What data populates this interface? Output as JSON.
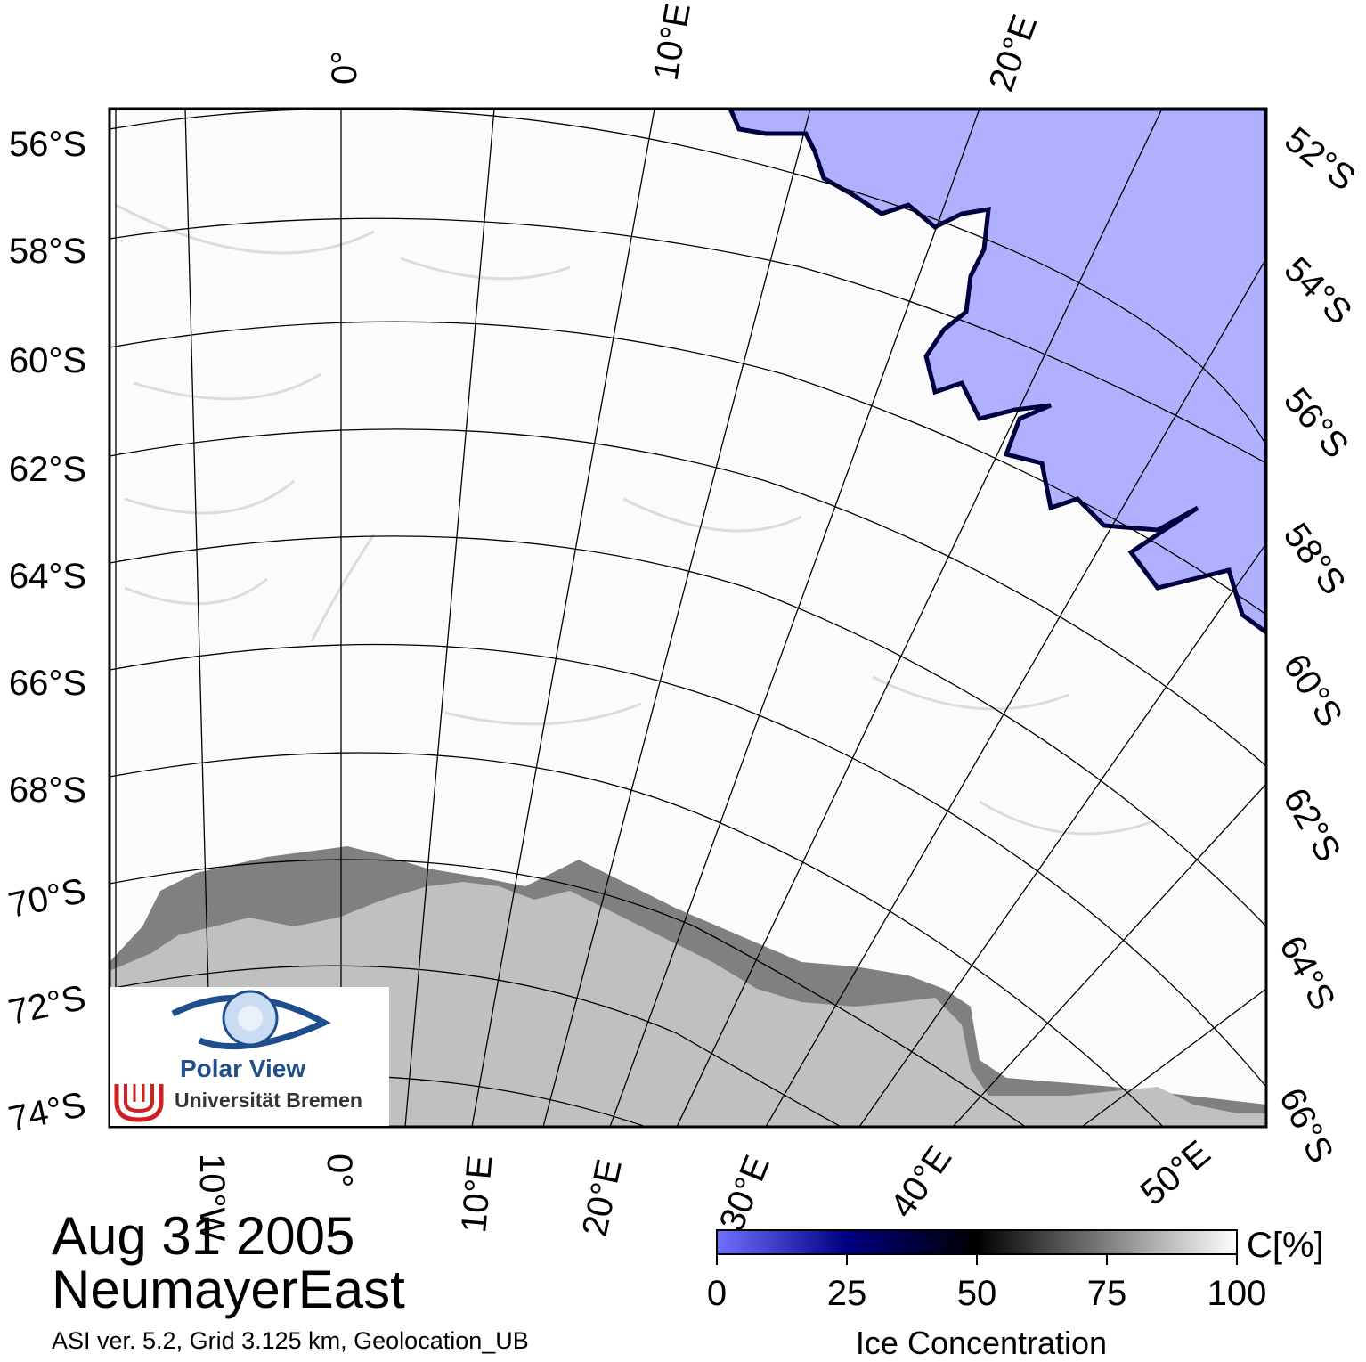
{
  "map": {
    "lat_labels_left": [
      "56°S",
      "58°S",
      "60°S",
      "62°S",
      "64°S",
      "66°S",
      "68°S",
      "70°S",
      "72°S",
      "74°S"
    ],
    "lat_labels_right": [
      "52°S",
      "54°S",
      "56°S",
      "58°S",
      "60°S",
      "62°S",
      "64°S",
      "66°S"
    ],
    "lon_labels_top": [
      "0°",
      "10°E",
      "20°E"
    ],
    "lon_labels_bottom": [
      "10°W",
      "0°",
      "10°E",
      "20°E",
      "30°E",
      "40°E",
      "50°E"
    ],
    "colors": {
      "open_water": "#b0b0ff",
      "ice_full": "#ffffff",
      "land": "#c0c0c0",
      "ice_shelf": "#808080",
      "ice_edge": "#000030",
      "graticule": "#000000"
    }
  },
  "title": {
    "date": "Aug 31 2005",
    "region": "NeumayerEast",
    "credit": "ASI ver. 5.2,  Grid 3.125 km, Geolocation_UB"
  },
  "colorbar": {
    "title": "Ice Concentration",
    "unit": "C[%]",
    "ticks": [
      "0",
      "25",
      "50",
      "75",
      "100"
    ],
    "stops": [
      "#7070ff",
      "#000080",
      "#000000",
      "#808080",
      "#ffffff"
    ]
  },
  "logo": {
    "title": "Polar View",
    "org": "Universität Bremen"
  }
}
